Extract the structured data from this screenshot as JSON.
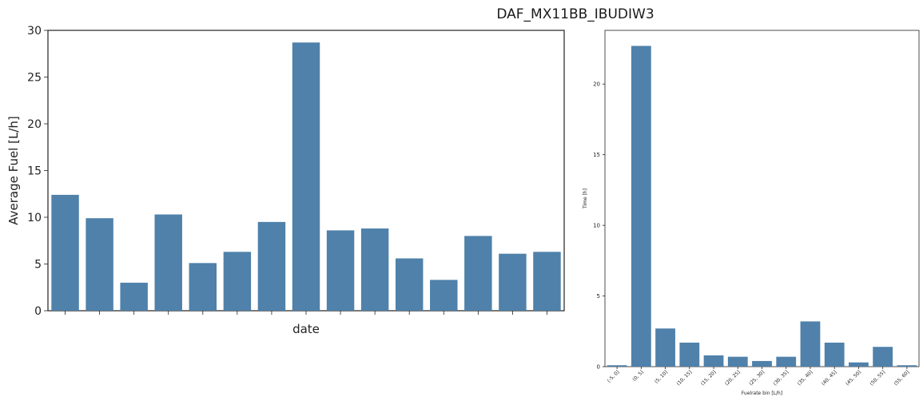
{
  "figure": {
    "title": "DAF_MX11BB_IBUDIW3"
  },
  "chart_data": [
    {
      "type": "bar",
      "categories": [
        "",
        "",
        "",
        "",
        "",
        "",
        "",
        "",
        "",
        "",
        "",
        "",
        "",
        "",
        ""
      ],
      "values": [
        12.4,
        9.9,
        3.0,
        10.3,
        5.1,
        6.3,
        9.5,
        28.7,
        8.6,
        8.8,
        5.6,
        3.3,
        8.0,
        6.1,
        6.3
      ],
      "title": "",
      "xlabel": "date",
      "ylabel": "Average Fuel [L/h]",
      "ylim": [
        0,
        30
      ],
      "yticks": [
        0,
        5,
        10,
        15,
        20,
        25,
        30
      ],
      "color": "#4f81aa"
    },
    {
      "type": "bar",
      "categories": [
        "(-5, 0]",
        "(0, 5]",
        "(5, 10]",
        "(10, 15]",
        "(15, 20]",
        "(20, 25]",
        "(25, 30]",
        "(30, 35]",
        "(35, 40]",
        "(40, 45]",
        "(45, 50]",
        "(50, 55]",
        "(55, 60]"
      ],
      "values": [
        0.1,
        22.7,
        2.7,
        1.7,
        0.8,
        0.7,
        0.4,
        0.7,
        3.2,
        1.7,
        0.3,
        1.4,
        0.1
      ],
      "title": "",
      "xlabel": "Fuelrate bin [L/h]",
      "ylabel": "Time [h]",
      "ylim": [
        0,
        23.8
      ],
      "yticks": [
        0,
        5,
        10,
        15,
        20
      ],
      "color": "#4f81aa"
    }
  ]
}
